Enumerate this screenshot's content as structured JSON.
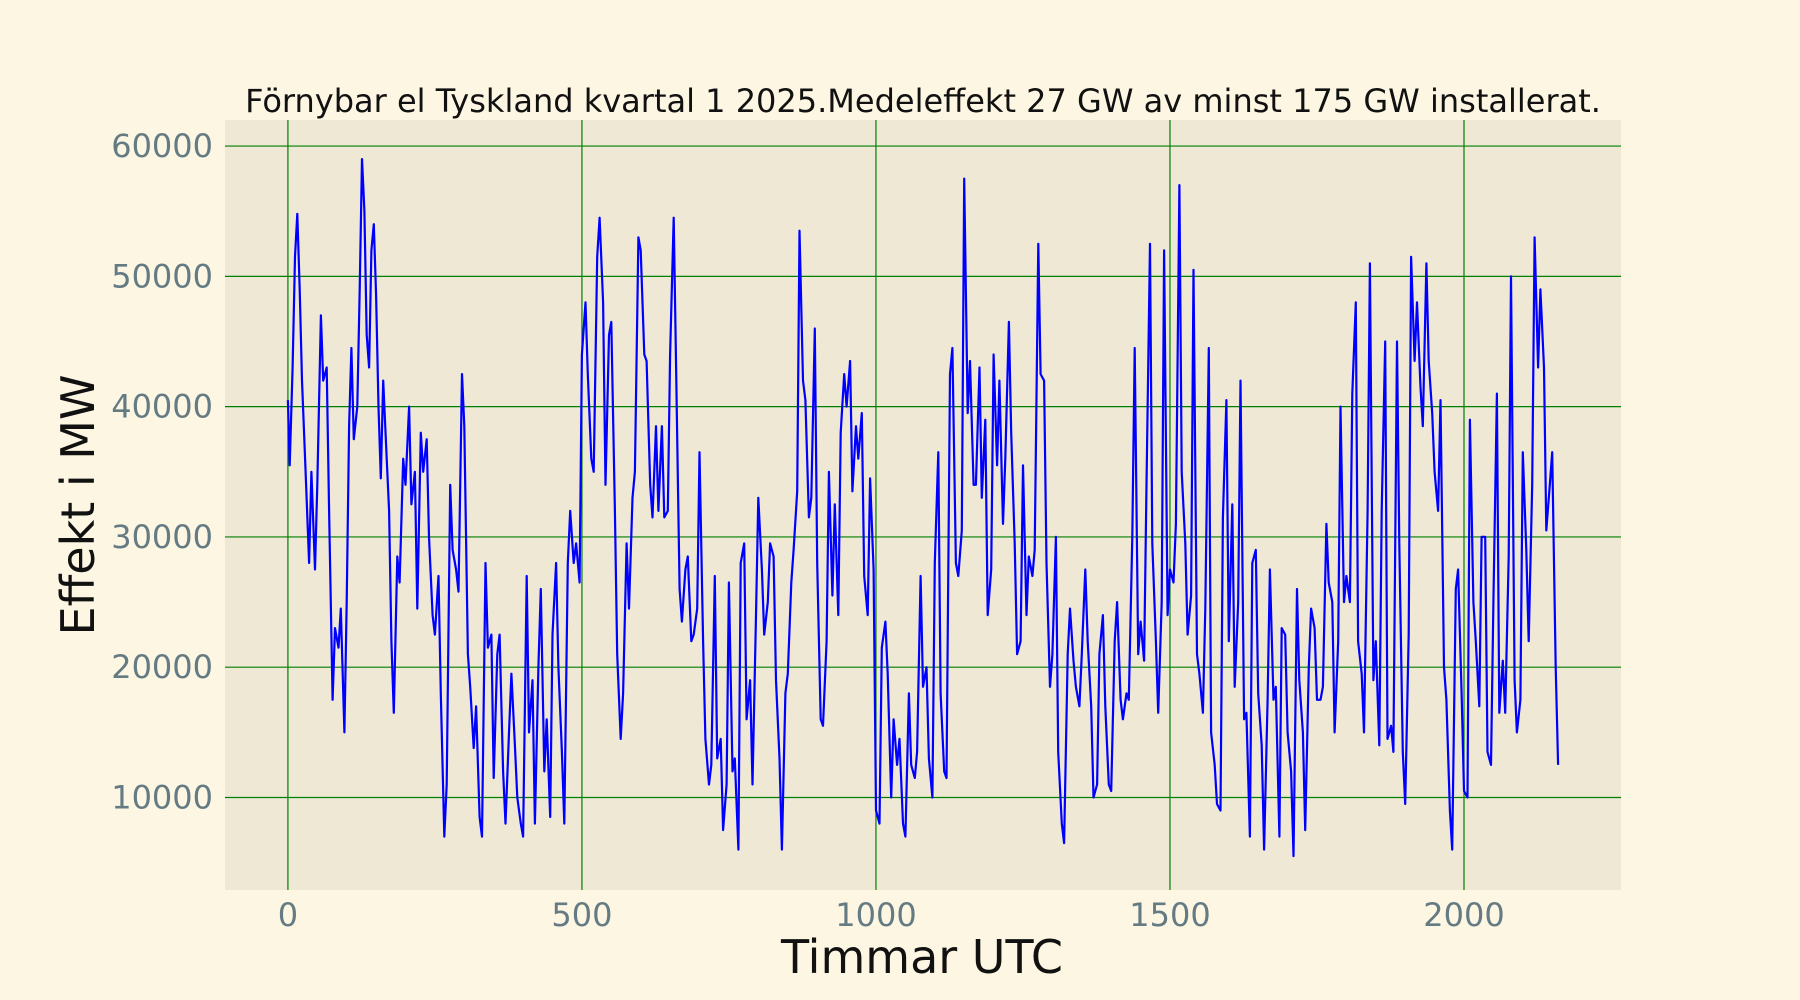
{
  "chart_data": {
    "type": "line",
    "title": "Förnybar el Tyskland kvartal 1 2025.Medeleffekt 27 GW av minst 175 GW installerat.",
    "xlabel": "Timmar UTC",
    "ylabel": "Effekt i MW",
    "xlim": [
      -107,
      2267
    ],
    "ylim": [
      2900,
      62000
    ],
    "xticks": [
      0,
      500,
      1000,
      1500,
      2000
    ],
    "yticks": [
      10000,
      20000,
      30000,
      40000,
      50000,
      60000
    ],
    "xtick_labels": [
      "0",
      "500",
      "1000",
      "1500",
      "2000"
    ],
    "ytick_labels": [
      "10000",
      "20000",
      "30000",
      "40000",
      "50000",
      "60000"
    ],
    "grid": true,
    "legend": "none",
    "colors": {
      "figure_bg": "#fdf6e3",
      "axes_bg": "#eee8d5",
      "grid": "#008000",
      "line": "#0000ff",
      "tick_text": "#657b83"
    },
    "series": [
      {
        "x": [
          0,
          3,
          8,
          12,
          16,
          20,
          24,
          30,
          36,
          40,
          46,
          50,
          56,
          60,
          66,
          70,
          76,
          80,
          86,
          90,
          96,
          100,
          104,
          108,
          112,
          118,
          122,
          126,
          130,
          134,
          138,
          142,
          146,
          150,
          154,
          158,
          162,
          168,
          172,
          176,
          180,
          186,
          190,
          196,
          200,
          206,
          210,
          216,
          220,
          226,
          230,
          236,
          240,
          246,
          250,
          256,
          260,
          266,
          270,
          276,
          280,
          286,
          290,
          296,
          300,
          306,
          310,
          316,
          320,
          326,
          330,
          336,
          340,
          346,
          350,
          356,
          360,
          366,
          370,
          376,
          380,
          386,
          390,
          396,
          400,
          406,
          410,
          416,
          420,
          426,
          430,
          436,
          440,
          446,
          450,
          456,
          460,
          466,
          470,
          476,
          480,
          486,
          490,
          496,
          500,
          506,
          510,
          516,
          520,
          526,
          530,
          536,
          540,
          546,
          550,
          556,
          560,
          566,
          570,
          576,
          580,
          586,
          590,
          596,
          600,
          606,
          610,
          616,
          620,
          626,
          630,
          636,
          640,
          646,
          650,
          656,
          660,
          666,
          670,
          676,
          680,
          686,
          690,
          696,
          700,
          706,
          710,
          716,
          720,
          726,
          730,
          736,
          740,
          746,
          750,
          756,
          760,
          766,
          770,
          776,
          780,
          786,
          790,
          796,
          800,
          806,
          810,
          816,
          820,
          826,
          830,
          836,
          840,
          846,
          850,
          856,
          860,
          866,
          870,
          876,
          880,
          886,
          890,
          896,
          900,
          906,
          910,
          916,
          920,
          926,
          930,
          936,
          940,
          946,
          950,
          956,
          960,
          966,
          970,
          976,
          980,
          986,
          990,
          996,
          1000,
          1006,
          1010,
          1016,
          1020,
          1026,
          1030,
          1036,
          1040,
          1046,
          1050,
          1056,
          1060,
          1066,
          1070,
          1076,
          1080,
          1086,
          1090,
          1096,
          1100,
          1106,
          1110,
          1116,
          1120,
          1126,
          1130,
          1136,
          1140,
          1146,
          1150,
          1156,
          1160,
          1166,
          1170,
          1176,
          1180,
          1186,
          1190,
          1196,
          1200,
          1206,
          1210,
          1216,
          1220,
          1226,
          1230,
          1236,
          1240,
          1246,
          1250,
          1256,
          1260,
          1266,
          1270,
          1276,
          1280,
          1286,
          1290,
          1296,
          1300,
          1306,
          1310,
          1316,
          1320,
          1326,
          1330,
          1336,
          1340,
          1346,
          1350,
          1356,
          1360,
          1366,
          1370,
          1376,
          1380,
          1386,
          1390,
          1396,
          1400,
          1406,
          1410,
          1416,
          1420,
          1426,
          1430,
          1436,
          1440,
          1446,
          1450,
          1456,
          1460,
          1466,
          1470,
          1476,
          1480,
          1486,
          1490,
          1496,
          1500,
          1506,
          1510,
          1516,
          1520,
          1526,
          1530,
          1536,
          1540,
          1546,
          1550,
          1556,
          1560,
          1566,
          1570,
          1576,
          1580,
          1586,
          1590,
          1596,
          1600,
          1606,
          1610,
          1616,
          1620,
          1626,
          1630,
          1636,
          1640,
          1646,
          1650,
          1656,
          1660,
          1666,
          1670,
          1676,
          1680,
          1686,
          1690,
          1696,
          1700,
          1706,
          1710,
          1716,
          1720,
          1726,
          1730,
          1736,
          1740,
          1746,
          1750,
          1756,
          1760,
          1766,
          1770,
          1776,
          1780,
          1786,
          1790,
          1796,
          1800,
          1806,
          1810,
          1816,
          1820,
          1826,
          1830,
          1836,
          1840,
          1846,
          1850,
          1856,
          1860,
          1866,
          1870,
          1876,
          1880,
          1886,
          1890,
          1896,
          1900,
          1906,
          1910,
          1916,
          1920,
          1926,
          1930,
          1936,
          1940,
          1946,
          1950,
          1956,
          1960,
          1966,
          1970,
          1976,
          1980,
          1986,
          1990,
          1996,
          2000,
          2006,
          2010,
          2016,
          2020,
          2026,
          2030,
          2036,
          2040,
          2046,
          2050,
          2056,
          2060,
          2066,
          2070,
          2076,
          2080,
          2086,
          2090,
          2096,
          2100,
          2106,
          2110,
          2116,
          2120,
          2126,
          2130,
          2136,
          2140,
          2146,
          2150,
          2156,
          2160
        ],
        "y": [
          40500,
          35500,
          43000,
          51500,
          54800,
          49000,
          42000,
          35000,
          28000,
          35000,
          27500,
          34000,
          47000,
          42000,
          43000,
          32000,
          17500,
          23000,
          21500,
          24500,
          15000,
          25000,
          38500,
          44500,
          37500,
          40000,
          49000,
          59000,
          55000,
          45500,
          43000,
          52000,
          54000,
          48500,
          40000,
          34500,
          42000,
          36000,
          32000,
          22000,
          16500,
          28500,
          26500,
          36000,
          34000,
          40000,
          32500,
          35000,
          24500,
          38000,
          35000,
          37500,
          30000,
          24000,
          22500,
          27000,
          18000,
          7000,
          11000,
          34000,
          29000,
          27500,
          25800,
          42500,
          38500,
          21000,
          18500,
          13800,
          17000,
          8500,
          7000,
          28000,
          21500,
          22500,
          11500,
          21000,
          22500,
          12000,
          8000,
          15000,
          19500,
          14000,
          10000,
          8000,
          7000,
          27000,
          15000,
          19000,
          8000,
          20000,
          26000,
          12000,
          16000,
          8500,
          22500,
          28000,
          20000,
          13500,
          8000,
          28000,
          32000,
          28000,
          29500,
          26500,
          44000,
          48000,
          42500,
          36000,
          35000,
          51500,
          54500,
          48000,
          34000,
          45500,
          46500,
          32000,
          21000,
          14500,
          18000,
          29500,
          24500,
          33000,
          35000,
          53000,
          52000,
          44000,
          43500,
          34000,
          31500,
          38500,
          32000,
          38500,
          31500,
          32000,
          44000,
          54500,
          43500,
          26000,
          23500,
          27500,
          28500,
          22000,
          22500,
          24500,
          36500,
          22000,
          14500,
          11000,
          12500,
          27000,
          13000,
          14500,
          7500,
          11000,
          26500,
          12000,
          13000,
          6000,
          28000,
          29500,
          16000,
          19000,
          11000,
          24000,
          33000,
          27500,
          22500,
          25000,
          29500,
          28500,
          19000,
          13000,
          6000,
          18000,
          19500,
          26500,
          29000,
          33500,
          53500,
          42000,
          40500,
          31500,
          33000,
          46000,
          28000,
          16000,
          15500,
          22000,
          35000,
          25500,
          32500,
          24000,
          38000,
          42500,
          40000,
          43500,
          33500,
          38500,
          36000,
          39500,
          27000,
          24000,
          34500,
          27500,
          9000,
          8000,
          21500,
          23500,
          19500,
          10000,
          16000,
          12500,
          14500,
          8000,
          7000,
          18000,
          12500,
          11500,
          13500,
          27000,
          18500,
          20000,
          13000,
          10000,
          28000,
          36500,
          18000,
          12000,
          11500,
          42500,
          44500,
          28000,
          27000,
          30500,
          57500,
          39500,
          43500,
          34000,
          34000,
          43000,
          33000,
          39000,
          24000,
          27500,
          44000,
          35500,
          42000,
          31000,
          36000,
          46500,
          38000,
          29500,
          21000,
          22000,
          35500,
          24000,
          28500,
          27000,
          29000,
          52500,
          42500,
          42000,
          28000,
          18500,
          21000,
          30000,
          13500,
          8000,
          6500,
          21000,
          24500,
          20500,
          18500,
          17000,
          21000,
          27500,
          22000,
          17000,
          10000,
          11000,
          21000,
          24000,
          17000,
          11000,
          10500,
          22000,
          25000,
          17500,
          16000,
          18000,
          17500,
          30000,
          44500,
          21000,
          23500,
          20500,
          34000,
          52500,
          29500,
          22000,
          16500,
          25000,
          52000,
          24000,
          27500,
          26500,
          31000,
          57000,
          35000,
          29500,
          22500,
          25500,
          50500,
          21000,
          19500,
          16500,
          24500,
          44500,
          15000,
          12500,
          9500,
          9000,
          31500,
          40500,
          22000,
          32500,
          18500,
          25000,
          42000,
          16000,
          16500,
          7000,
          28000,
          29000,
          18000,
          14000,
          6000,
          17500,
          27500,
          17500,
          18500,
          7000,
          23000,
          22500,
          15000,
          12000,
          5500,
          26000,
          19000,
          15000,
          7500,
          20000,
          24500,
          23000,
          17500,
          17500,
          18500,
          31000,
          26500,
          25000,
          15000,
          22000,
          40000,
          25000,
          27000,
          25000,
          41000,
          48000,
          22000,
          19500,
          15000,
          32000,
          51000,
          19000,
          22000,
          14000,
          32000,
          45000,
          14500,
          15500,
          13500,
          45000,
          29500,
          13500,
          9500,
          22500,
          51500,
          43500,
          48000,
          41500,
          38500,
          51000,
          43500,
          39500,
          35000,
          32000,
          40500,
          20000,
          17500,
          9000,
          6000,
          26000,
          27500,
          18000,
          10500,
          10000,
          39000,
          25000,
          22000,
          17000,
          30000,
          30000,
          13500,
          12500,
          25000,
          41000,
          16500,
          20500,
          16500,
          28500,
          50000,
          19000,
          15000,
          17500,
          36500,
          29000,
          22000,
          34000,
          53000,
          43000,
          49000,
          43000,
          30500,
          34000,
          36500,
          20000,
          12500
        ]
      }
    ]
  }
}
